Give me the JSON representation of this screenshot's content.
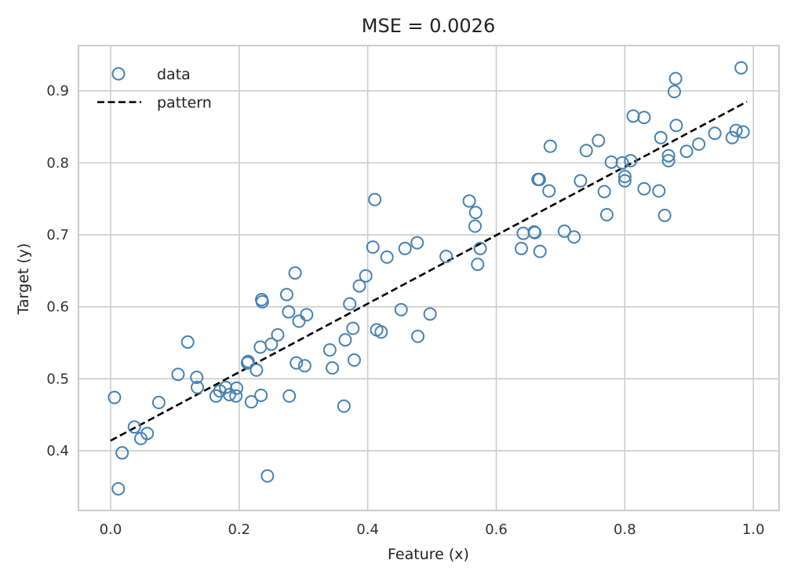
{
  "chart_data": {
    "type": "scatter",
    "title": "MSE = 0.0026",
    "xlabel": "Feature (x)",
    "ylabel": "Target (y)",
    "xlim": [
      -0.05,
      1.04
    ],
    "ylim": [
      0.317,
      0.963
    ],
    "xticks": [
      0.0,
      0.2,
      0.4,
      0.6,
      0.8,
      1.0
    ],
    "xtick_labels": [
      "0.0",
      "0.2",
      "0.4",
      "0.6",
      "0.8",
      "1.0"
    ],
    "yticks": [
      0.4,
      0.5,
      0.6,
      0.7,
      0.8,
      0.9
    ],
    "ytick_labels": [
      "0.4",
      "0.5",
      "0.6",
      "0.7",
      "0.8",
      "0.9"
    ],
    "grid": true,
    "legend_position": "top-left",
    "colors": {
      "points": "#4682b4",
      "line": "#000000",
      "grid": "#cccccc",
      "spine": "#cccccc"
    },
    "series": [
      {
        "name": "data",
        "kind": "scatter",
        "points": [
          [
            0.006,
            0.474
          ],
          [
            0.012,
            0.347
          ],
          [
            0.018,
            0.397
          ],
          [
            0.037,
            0.433
          ],
          [
            0.047,
            0.417
          ],
          [
            0.057,
            0.424
          ],
          [
            0.075,
            0.467
          ],
          [
            0.105,
            0.506
          ],
          [
            0.12,
            0.551
          ],
          [
            0.134,
            0.502
          ],
          [
            0.135,
            0.488
          ],
          [
            0.164,
            0.476
          ],
          [
            0.17,
            0.483
          ],
          [
            0.179,
            0.488
          ],
          [
            0.185,
            0.478
          ],
          [
            0.195,
            0.476
          ],
          [
            0.196,
            0.487
          ],
          [
            0.213,
            0.522
          ],
          [
            0.214,
            0.524
          ],
          [
            0.219,
            0.468
          ],
          [
            0.227,
            0.512
          ],
          [
            0.233,
            0.544
          ],
          [
            0.234,
            0.477
          ],
          [
            0.235,
            0.61
          ],
          [
            0.236,
            0.607
          ],
          [
            0.244,
            0.365
          ],
          [
            0.25,
            0.548
          ],
          [
            0.26,
            0.561
          ],
          [
            0.274,
            0.617
          ],
          [
            0.277,
            0.593
          ],
          [
            0.278,
            0.476
          ],
          [
            0.287,
            0.647
          ],
          [
            0.289,
            0.522
          ],
          [
            0.293,
            0.58
          ],
          [
            0.302,
            0.518
          ],
          [
            0.305,
            0.589
          ],
          [
            0.341,
            0.54
          ],
          [
            0.345,
            0.515
          ],
          [
            0.363,
            0.462
          ],
          [
            0.365,
            0.554
          ],
          [
            0.372,
            0.604
          ],
          [
            0.377,
            0.57
          ],
          [
            0.379,
            0.526
          ],
          [
            0.387,
            0.629
          ],
          [
            0.397,
            0.643
          ],
          [
            0.408,
            0.683
          ],
          [
            0.411,
            0.749
          ],
          [
            0.414,
            0.568
          ],
          [
            0.421,
            0.565
          ],
          [
            0.43,
            0.669
          ],
          [
            0.452,
            0.596
          ],
          [
            0.458,
            0.681
          ],
          [
            0.477,
            0.689
          ],
          [
            0.478,
            0.559
          ],
          [
            0.497,
            0.59
          ],
          [
            0.522,
            0.67
          ],
          [
            0.558,
            0.747
          ],
          [
            0.567,
            0.712
          ],
          [
            0.568,
            0.731
          ],
          [
            0.571,
            0.659
          ],
          [
            0.575,
            0.681
          ],
          [
            0.639,
            0.681
          ],
          [
            0.642,
            0.702
          ],
          [
            0.659,
            0.704
          ],
          [
            0.66,
            0.703
          ],
          [
            0.665,
            0.777
          ],
          [
            0.667,
            0.777
          ],
          [
            0.668,
            0.677
          ],
          [
            0.682,
            0.761
          ],
          [
            0.684,
            0.823
          ],
          [
            0.706,
            0.705
          ],
          [
            0.721,
            0.697
          ],
          [
            0.731,
            0.775
          ],
          [
            0.74,
            0.817
          ],
          [
            0.759,
            0.831
          ],
          [
            0.768,
            0.76
          ],
          [
            0.772,
            0.728
          ],
          [
            0.779,
            0.801
          ],
          [
            0.796,
            0.8
          ],
          [
            0.8,
            0.781
          ],
          [
            0.8,
            0.775
          ],
          [
            0.809,
            0.803
          ],
          [
            0.813,
            0.865
          ],
          [
            0.83,
            0.863
          ],
          [
            0.83,
            0.764
          ],
          [
            0.853,
            0.761
          ],
          [
            0.856,
            0.835
          ],
          [
            0.862,
            0.727
          ],
          [
            0.868,
            0.803
          ],
          [
            0.868,
            0.81
          ],
          [
            0.877,
            0.899
          ],
          [
            0.879,
            0.917
          ],
          [
            0.88,
            0.852
          ],
          [
            0.896,
            0.816
          ],
          [
            0.915,
            0.826
          ],
          [
            0.94,
            0.841
          ],
          [
            0.967,
            0.835
          ],
          [
            0.973,
            0.845
          ],
          [
            0.981,
            0.932
          ],
          [
            0.984,
            0.843
          ]
        ]
      },
      {
        "name": "pattern",
        "kind": "line",
        "style": "dashed",
        "x": [
          0.0,
          0.99
        ],
        "y": [
          0.414,
          0.885
        ]
      }
    ]
  }
}
